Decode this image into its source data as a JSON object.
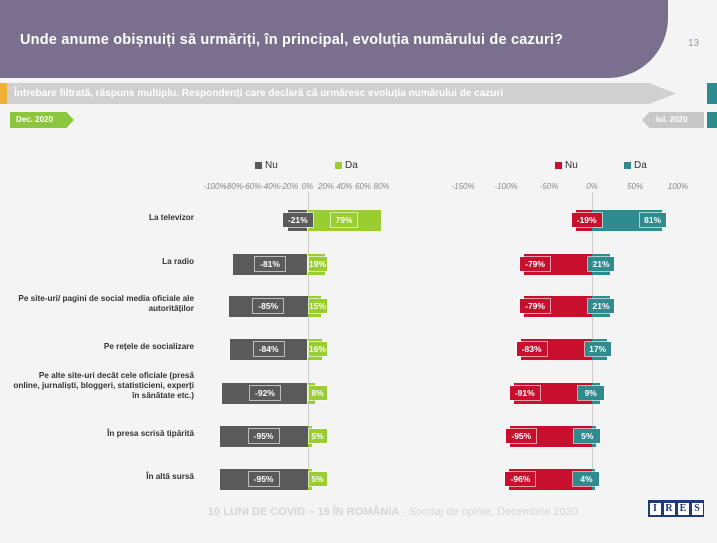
{
  "slide": {
    "title": "Unde anume obișnuiți să urmăriți, în principal, evoluția numărului de cazuri?",
    "page_number": "13",
    "subtitle": "Întrebare filtrată, răspuns multiplu.  Respondenți care declară că urmăresc evoluția numărului de cazuri",
    "tag_left": "Dec. 2020",
    "tag_right": "Iul. 2020",
    "footer_bold": "10 LUNI DE COVID – 19 ÎN ROMÂNIA",
    "footer_rest": " - Sondaj  de opinie, Decembrie 2020",
    "logo_letters": [
      "I",
      "R",
      "E",
      "S"
    ]
  },
  "colors": {
    "banner": "#7a6f8c",
    "nu_dec": "#5a5a5a",
    "da_dec": "#9acd32",
    "nu_iul": "#c8102e",
    "da_iul": "#2e8b8e"
  },
  "chart_data": [
    {
      "type": "bar",
      "orientation": "horizontal",
      "stacked": "diverging",
      "period": "Dec. 2020",
      "categories": [
        "La televizor",
        "La radio",
        "Pe site-uri/ pagini de social media oficiale ale autorităților",
        "Pe rețele de socializare",
        "Pe alte site-uri decât cele oficiale (presă online, jurnaliști, bloggeri, statisticieni, experți în sănătate etc.)",
        "În presa scrisă tipărită",
        "În altă sursă"
      ],
      "series": [
        {
          "name": "Nu",
          "values": [
            -21,
            -81,
            -85,
            -84,
            -92,
            -95,
            -95
          ],
          "labels": [
            "-21%",
            "-81%",
            "-85%",
            "-84%",
            "-92%",
            "-95%",
            "-95%"
          ]
        },
        {
          "name": "Da",
          "values": [
            79,
            19,
            15,
            16,
            8,
            5,
            5
          ],
          "labels": [
            "79%",
            "19%",
            "15%",
            "16%",
            "8%",
            "5%",
            "5%"
          ]
        }
      ],
      "xlim": [
        -100,
        100
      ],
      "tick_values": [
        -100,
        -80,
        -60,
        -40,
        -20,
        0,
        20,
        40,
        60,
        80
      ],
      "tick_labels": [
        "-100%",
        "-80%",
        "-60%",
        "-40%",
        "-20%",
        "0%",
        "20%",
        "40%",
        "60%",
        "80%"
      ],
      "legend_position": "top"
    },
    {
      "type": "bar",
      "orientation": "horizontal",
      "stacked": "diverging",
      "period": "Iul. 2020",
      "series": [
        {
          "name": "Nu",
          "values": [
            -19,
            -79,
            -79,
            -83,
            -91,
            -95,
            -96
          ],
          "labels": [
            "-19%",
            "-79%",
            "-79%",
            "-83%",
            "-91%",
            "-95%",
            "-96%"
          ]
        },
        {
          "name": "Da",
          "values": [
            81,
            21,
            21,
            17,
            9,
            5,
            4
          ],
          "labels": [
            "81%",
            "21%",
            "21%",
            "17%",
            "9%",
            "5%",
            "4%"
          ]
        }
      ],
      "xlim": [
        -150,
        100
      ],
      "tick_values": [
        -150,
        -100,
        -50,
        0,
        50,
        100
      ],
      "tick_labels": [
        "-150%",
        "-100%",
        "-50%",
        "0%",
        "50%",
        "100%"
      ],
      "legend_position": "top"
    }
  ]
}
